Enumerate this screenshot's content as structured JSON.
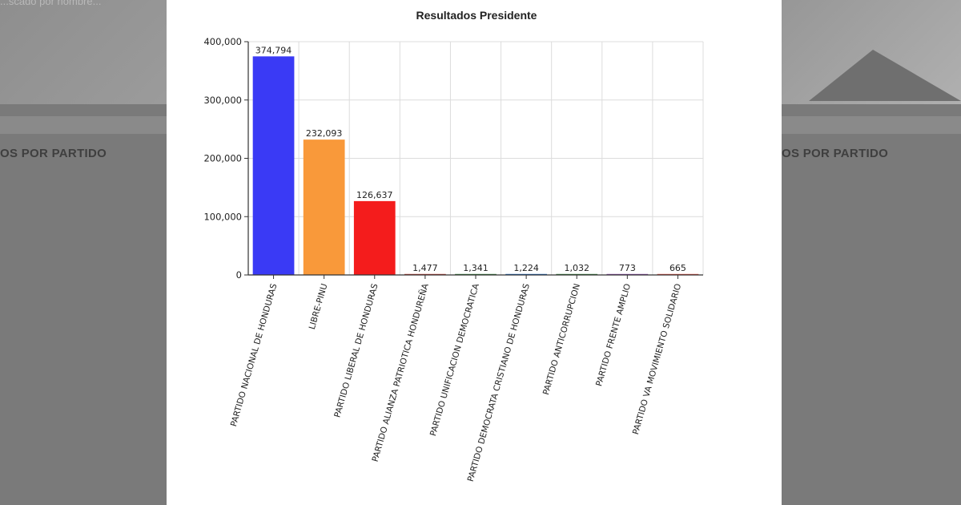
{
  "background": {
    "search_placeholder": "...scado por nombre...",
    "heading_left": "OS POR PARTIDO",
    "heading_right": "OS POR PARTIDO"
  },
  "chart_data": {
    "type": "bar",
    "title": "Resultados Presidente",
    "xlabel": "",
    "ylabel": "",
    "ylim": [
      0,
      400000
    ],
    "yticks": [
      0,
      100000,
      200000,
      300000,
      400000
    ],
    "ytick_labels": [
      "0",
      "100,000",
      "200,000",
      "300,000",
      "400,000"
    ],
    "grid": true,
    "categories": [
      "PARTIDO NACIONAL DE HONDURAS",
      "LIBRE-PINU",
      "PARTIDO LIBERAL DE HONDURAS",
      "PARTIDO ALIANZA PATRIOTICA HONDUREÑA",
      "PARTIDO UNIFICACION DEMOCRATICA",
      "PARTIDO DEMOCRATA CRISTIANO DE HONDURAS",
      "PARTIDO ANTICORRUPCION",
      "PARTIDO FRENTE AMPLIO",
      "PARTIDO VA MOVIMIENTO SOLIDARIO"
    ],
    "values": [
      374794,
      232093,
      126637,
      1477,
      1341,
      1224,
      1032,
      773,
      665
    ],
    "value_labels": [
      "374,794",
      "232,093",
      "126,637",
      "1,477",
      "1,341",
      "1,224",
      "1,032",
      "773",
      "665"
    ],
    "colors": [
      "#3a3af5",
      "#f9993a",
      "#f41c1c",
      "#c0392b",
      "#2e7d32",
      "#1565c0",
      "#2e7d32",
      "#8e44ad",
      "#e74c3c"
    ]
  }
}
